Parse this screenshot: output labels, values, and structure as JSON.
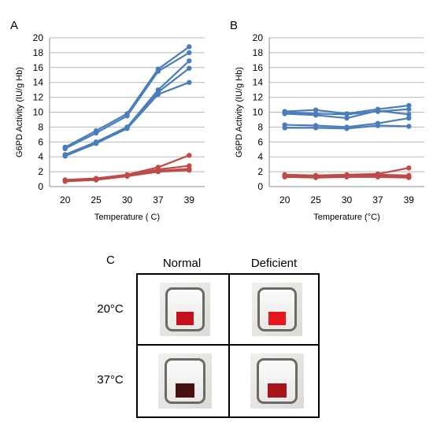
{
  "panels": {
    "a": "A",
    "b": "B",
    "c": "C"
  },
  "chart_data": [
    {
      "type": "line",
      "categories": [
        "20",
        "25",
        "30",
        "37",
        "39"
      ],
      "xlabel": "Temperature ( C)",
      "ylabel": "G6PD Activity (IU/g Hb)",
      "ylim": [
        0,
        20
      ],
      "yticks": [
        0,
        2,
        4,
        6,
        8,
        10,
        12,
        14,
        16,
        18,
        20
      ],
      "grid": true,
      "series": [
        {
          "color": "#4a7ebb",
          "values": [
            5.3,
            7.5,
            9.8,
            15.8,
            18.8
          ]
        },
        {
          "color": "#4a7ebb",
          "values": [
            5.1,
            7.2,
            9.5,
            15.5,
            18.0
          ]
        },
        {
          "color": "#4a7ebb",
          "values": [
            4.3,
            6.0,
            8.0,
            13.0,
            16.9
          ]
        },
        {
          "color": "#4a7ebb",
          "values": [
            4.2,
            5.9,
            7.9,
            12.7,
            15.9
          ]
        },
        {
          "color": "#4a7ebb",
          "values": [
            4.1,
            5.8,
            7.8,
            12.4,
            14.0
          ]
        },
        {
          "color": "#be4b48",
          "values": [
            0.9,
            1.1,
            1.6,
            2.6,
            4.2
          ]
        },
        {
          "color": "#be4b48",
          "values": [
            0.8,
            1.0,
            1.5,
            2.3,
            2.8
          ]
        },
        {
          "color": "#be4b48",
          "values": [
            0.8,
            0.9,
            1.4,
            2.1,
            2.4
          ]
        },
        {
          "color": "#be4b48",
          "values": [
            0.7,
            0.9,
            1.4,
            2.0,
            2.2
          ]
        }
      ]
    },
    {
      "type": "line",
      "categories": [
        "20",
        "25",
        "30",
        "37",
        "39"
      ],
      "xlabel": "Temperature (°C)",
      "ylabel": "G6PD Activity (IU/g Hb)",
      "ylim": [
        0,
        20
      ],
      "yticks": [
        0,
        2,
        4,
        6,
        8,
        10,
        12,
        14,
        16,
        18,
        20
      ],
      "grid": true,
      "series": [
        {
          "color": "#4a7ebb",
          "values": [
            10.1,
            10.3,
            9.8,
            10.4,
            10.9
          ]
        },
        {
          "color": "#4a7ebb",
          "values": [
            10.0,
            9.8,
            9.7,
            10.1,
            10.4
          ]
        },
        {
          "color": "#4a7ebb",
          "values": [
            9.8,
            9.6,
            9.2,
            10.2,
            9.7
          ]
        },
        {
          "color": "#4a7ebb",
          "values": [
            8.3,
            8.2,
            8.0,
            8.5,
            9.2
          ]
        },
        {
          "color": "#4a7ebb",
          "values": [
            7.9,
            7.9,
            7.8,
            8.2,
            8.1
          ]
        },
        {
          "color": "#be4b48",
          "values": [
            1.6,
            1.5,
            1.6,
            1.7,
            2.5
          ]
        },
        {
          "color": "#be4b48",
          "values": [
            1.5,
            1.4,
            1.5,
            1.6,
            1.5
          ]
        },
        {
          "color": "#be4b48",
          "values": [
            1.4,
            1.3,
            1.4,
            1.4,
            1.3
          ]
        },
        {
          "color": "#be4b48",
          "values": [
            1.3,
            1.2,
            1.3,
            1.3,
            1.2
          ]
        }
      ]
    }
  ],
  "photo_grid": {
    "columns": [
      "Normal",
      "Deficient"
    ],
    "rows": [
      "20°C",
      "37°C"
    ],
    "pad_colors": {
      "normal_20": "#c3111d",
      "deficient_20": "#e8141e",
      "normal_37": "#4a0f10",
      "deficient_37": "#a8141b"
    }
  }
}
